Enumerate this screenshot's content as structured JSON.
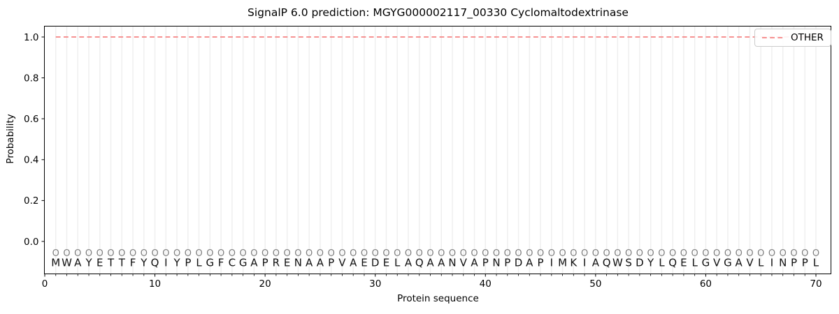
{
  "figure": {
    "title": "SignalP 6.0 prediction: MGYG000002117_00330 Cyclomaltodextrinase",
    "xlabel": "Protein sequence",
    "ylabel": "Probability",
    "legend": {
      "label": "OTHER"
    }
  },
  "colors": {
    "other_line": "#f58282",
    "grid": "#efefef",
    "spine": "#000000",
    "marker": "#7f7f7f",
    "letters": "#111111",
    "tick_text": "#000000",
    "legend_border": "#cccccc"
  },
  "chart_data": {
    "type": "line",
    "title": "SignalP 6.0 prediction: MGYG000002117_00330 Cyclomaltodextrinase",
    "xlabel": "Protein sequence",
    "ylabel": "Probability",
    "sequence": "MWAYETTFYQIYPLGFCGAPRENAAPVAEDELAQAANVAPNPDAPIMKIAQWSDYLQELGVGAVLINPPL",
    "marker_char": "O",
    "marker_y": -0.05,
    "x_start": 1,
    "x_end": 70,
    "series": [
      {
        "name": "OTHER",
        "style": "dashed",
        "values": [
          1.0,
          1.0,
          1.0,
          1.0,
          1.0,
          1.0,
          1.0,
          1.0,
          1.0,
          1.0,
          1.0,
          1.0,
          1.0,
          1.0,
          1.0,
          1.0,
          1.0,
          1.0,
          1.0,
          1.0,
          1.0,
          1.0,
          1.0,
          1.0,
          1.0,
          1.0,
          1.0,
          1.0,
          1.0,
          1.0,
          1.0,
          1.0,
          1.0,
          1.0,
          1.0,
          1.0,
          1.0,
          1.0,
          1.0,
          1.0,
          1.0,
          1.0,
          1.0,
          1.0,
          1.0,
          1.0,
          1.0,
          1.0,
          1.0,
          1.0,
          1.0,
          1.0,
          1.0,
          1.0,
          1.0,
          1.0,
          1.0,
          1.0,
          1.0,
          1.0,
          1.0,
          1.0,
          1.0,
          1.0,
          1.0,
          1.0,
          1.0,
          1.0,
          1.0,
          1.0
        ]
      }
    ],
    "x_ticks": [
      0,
      10,
      20,
      30,
      40,
      50,
      60,
      70
    ],
    "y_ticks": [
      0.0,
      0.2,
      0.4,
      0.6,
      0.8,
      1.0
    ],
    "xlim": [
      0,
      71.4
    ],
    "ylim": [
      -0.157,
      1.051
    ],
    "grid": "vertical line at every residue position",
    "legend_position": "upper right"
  }
}
